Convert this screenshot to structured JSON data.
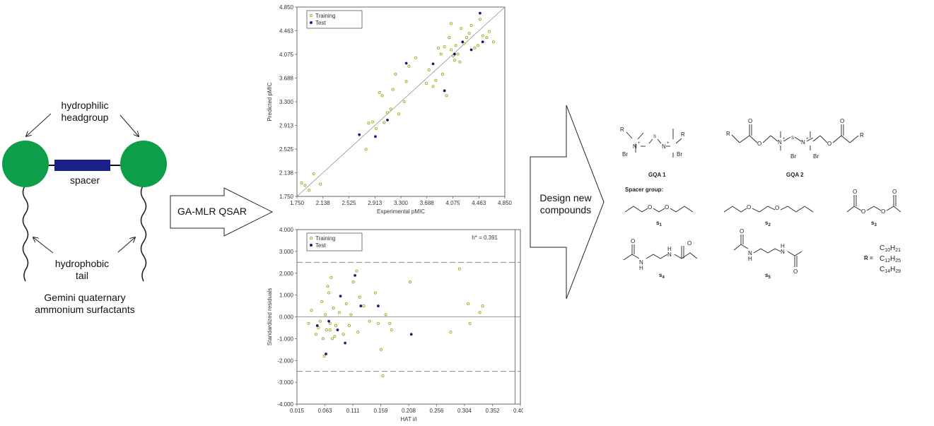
{
  "colors": {
    "head": "#0e9d48",
    "spacer": "#1b1f8a",
    "training": "#a8a61e",
    "test": "#1a1a7a"
  },
  "surfactant": {
    "hydrophilic": [
      "hydrophilic",
      "headgroup"
    ],
    "spacer": "spacer",
    "hydrophobic": [
      "hydrophobic",
      "tail"
    ],
    "caption": [
      "Gemini quaternary",
      "ammonium surfactants"
    ]
  },
  "arrows": {
    "qsar": "GA-MLR QSAR",
    "design": [
      "Design new",
      "compounds"
    ]
  },
  "chart_data": [
    {
      "type": "scatter",
      "xlabel": "Experimental pMIC",
      "ylabel": "Predicted pMIC",
      "xlim": [
        1.75,
        4.85
      ],
      "ylim": [
        1.75,
        4.85
      ],
      "xticks": [
        "1.750",
        "2.138",
        "2.525",
        "2.913",
        "3.300",
        "3.688",
        "4.075",
        "4.463",
        "4.850"
      ],
      "yticks": [
        "1.750",
        "2.138",
        "2.525",
        "2.913",
        "3.300",
        "3.688",
        "4.075",
        "4.463",
        "4.850"
      ],
      "legend": [
        "Training",
        "Test"
      ],
      "legend_position": "top-left",
      "fit_line": [
        [
          1.75,
          1.75
        ],
        [
          4.85,
          4.85
        ]
      ],
      "series": [
        {
          "name": "Training",
          "points": [
            [
              1.82,
              1.97
            ],
            [
              1.87,
              1.93
            ],
            [
              1.93,
              1.85
            ],
            [
              2.0,
              2.12
            ],
            [
              2.1,
              1.95
            ],
            [
              2.78,
              2.52
            ],
            [
              2.82,
              2.95
            ],
            [
              2.88,
              2.97
            ],
            [
              2.93,
              2.86
            ],
            [
              2.98,
              3.45
            ],
            [
              3.02,
              3.4
            ],
            [
              3.05,
              2.96
            ],
            [
              3.1,
              3.12
            ],
            [
              3.15,
              3.18
            ],
            [
              3.18,
              3.5
            ],
            [
              3.22,
              3.75
            ],
            [
              3.27,
              3.1
            ],
            [
              3.35,
              3.3
            ],
            [
              3.38,
              3.63
            ],
            [
              3.42,
              3.88
            ],
            [
              3.52,
              4.02
            ],
            [
              3.68,
              3.6
            ],
            [
              3.72,
              3.82
            ],
            [
              3.78,
              3.55
            ],
            [
              3.82,
              3.65
            ],
            [
              3.86,
              4.18
            ],
            [
              3.9,
              4.08
            ],
            [
              3.95,
              4.2
            ],
            [
              3.98,
              3.4
            ],
            [
              4.02,
              4.35
            ],
            [
              4.05,
              4.15
            ],
            [
              4.08,
              4.05
            ],
            [
              4.1,
              3.98
            ],
            [
              4.12,
              4.22
            ],
            [
              4.15,
              4.08
            ],
            [
              4.2,
              4.5
            ],
            [
              4.24,
              4.25
            ],
            [
              4.28,
              4.35
            ],
            [
              4.32,
              4.42
            ],
            [
              4.35,
              4.55
            ],
            [
              4.4,
              4.18
            ],
            [
              4.45,
              4.22
            ],
            [
              4.48,
              4.65
            ],
            [
              4.52,
              4.38
            ],
            [
              4.58,
              4.35
            ],
            [
              4.62,
              4.45
            ],
            [
              4.68,
              4.28
            ],
            [
              4.05,
              4.58
            ],
            [
              4.18,
              3.95
            ],
            [
              3.92,
              3.75
            ]
          ]
        },
        {
          "name": "Test",
          "points": [
            [
              2.68,
              2.76
            ],
            [
              2.92,
              2.73
            ],
            [
              3.1,
              3.0
            ],
            [
              3.38,
              3.93
            ],
            [
              3.78,
              3.92
            ],
            [
              3.95,
              3.48
            ],
            [
              4.1,
              4.08
            ],
            [
              4.22,
              4.28
            ],
            [
              4.35,
              4.15
            ],
            [
              4.48,
              4.75
            ],
            [
              4.52,
              4.28
            ]
          ]
        }
      ]
    },
    {
      "type": "scatter",
      "xlabel": "HAT i/i",
      "ylabel": "Standardized residuals",
      "xlim": [
        0.015,
        0.4
      ],
      "ylim": [
        -4.0,
        4.0
      ],
      "xticks": [
        "0.015",
        "0.063",
        "0.111",
        "0.159",
        "0.208",
        "0.256",
        "0.304",
        "0.352",
        "0.400"
      ],
      "yticks": [
        "4.000",
        "3.000",
        "2.000",
        "1.000",
        "0.000",
        "-1.000",
        "-2.000",
        "-3.000",
        "-4.000"
      ],
      "legend": [
        "Training",
        "Test"
      ],
      "legend_position": "top-left",
      "annotation": "h* = 0.391",
      "h_star": 0.391,
      "limits": [
        2.5,
        0.0,
        -2.5
      ],
      "series": [
        {
          "name": "Training",
          "points": [
            [
              0.035,
              -0.3
            ],
            [
              0.04,
              0.3
            ],
            [
              0.048,
              -0.8
            ],
            [
              0.052,
              -0.5
            ],
            [
              0.055,
              -0.2
            ],
            [
              0.058,
              0.7
            ],
            [
              0.06,
              -1.0
            ],
            [
              0.062,
              -1.8
            ],
            [
              0.064,
              0.1
            ],
            [
              0.066,
              -0.6
            ],
            [
              0.068,
              1.4
            ],
            [
              0.07,
              1.1
            ],
            [
              0.072,
              -0.3
            ],
            [
              0.074,
              1.8
            ],
            [
              0.076,
              -1.0
            ],
            [
              0.078,
              0.4
            ],
            [
              0.082,
              -0.4
            ],
            [
              0.088,
              0.2
            ],
            [
              0.095,
              -0.8
            ],
            [
              0.1,
              0.6
            ],
            [
              0.105,
              -0.4
            ],
            [
              0.108,
              0.1
            ],
            [
              0.112,
              1.6
            ],
            [
              0.118,
              2.1
            ],
            [
              0.12,
              -0.7
            ],
            [
              0.123,
              0.9
            ],
            [
              0.13,
              0.5
            ],
            [
              0.14,
              -0.2
            ],
            [
              0.15,
              1.1
            ],
            [
              0.155,
              -0.3
            ],
            [
              0.16,
              -1.5
            ],
            [
              0.163,
              -2.7
            ],
            [
              0.168,
              0.1
            ],
            [
              0.175,
              -0.3
            ],
            [
              0.178,
              -0.6
            ],
            [
              0.21,
              1.6
            ],
            [
              0.28,
              -0.7
            ],
            [
              0.295,
              2.2
            ],
            [
              0.31,
              0.6
            ],
            [
              0.313,
              -0.3
            ],
            [
              0.33,
              0.2
            ],
            [
              0.335,
              0.5
            ],
            [
              0.08,
              -0.9
            ],
            [
              0.072,
              -0.6
            ]
          ]
        },
        {
          "name": "Test",
          "points": [
            [
              0.05,
              -0.4
            ],
            [
              0.065,
              -1.7
            ],
            [
              0.07,
              -0.2
            ],
            [
              0.085,
              -0.6
            ],
            [
              0.09,
              0.95
            ],
            [
              0.098,
              -1.2
            ],
            [
              0.115,
              1.9
            ],
            [
              0.125,
              0.5
            ],
            [
              0.155,
              0.5
            ],
            [
              0.212,
              -0.8
            ]
          ]
        }
      ]
    }
  ],
  "chemistry": {
    "gqa1": "GQA 1",
    "gqa2": "GQA 2",
    "r": "R",
    "br": "Br",
    "n": "N",
    "s": "S",
    "spacer_heading": "Spacer group:",
    "spacers": [
      "s1",
      "s2",
      "s3",
      "s4",
      "s5"
    ],
    "spacer_labels": [
      {
        "main": "s",
        "sub": "1"
      },
      {
        "main": "s",
        "sub": "2"
      },
      {
        "main": "s",
        "sub": "3"
      },
      {
        "main": "s",
        "sub": "4"
      },
      {
        "main": "s",
        "sub": "5"
      }
    ],
    "r_label": "R =",
    "r_groups": [
      "C10H21",
      "C12H25",
      "C14H29"
    ],
    "r_group_parts": [
      {
        "c": "C",
        "cn": "10",
        "h": "H",
        "hn": "21"
      },
      {
        "c": "C",
        "cn": "12",
        "h": "H",
        "hn": "25"
      },
      {
        "c": "C",
        "cn": "14",
        "h": "H",
        "hn": "29"
      }
    ],
    "o": "O",
    "nh": "H"
  }
}
